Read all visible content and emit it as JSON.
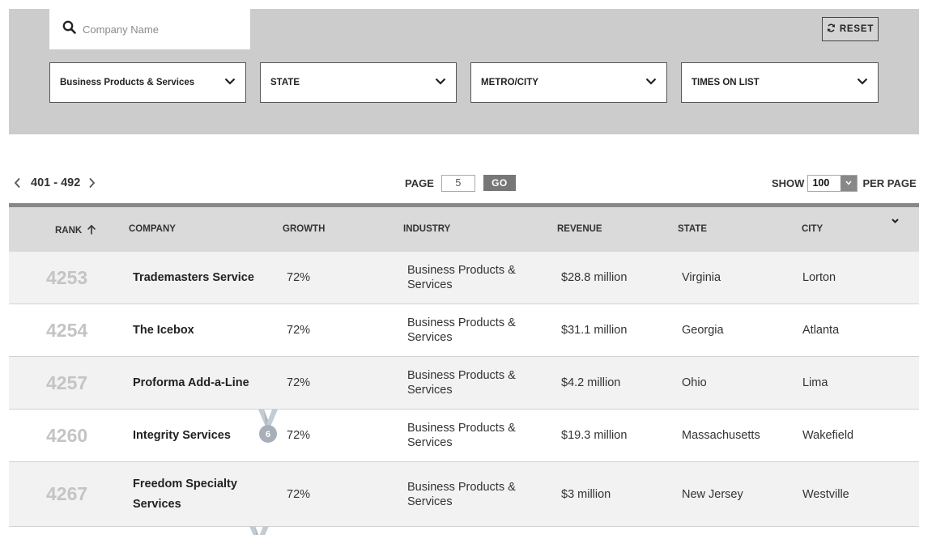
{
  "search": {
    "placeholder": "Company Name"
  },
  "reset_label": "RESET",
  "filters": [
    {
      "name": "industry",
      "label": "Business Products & Services"
    },
    {
      "name": "state",
      "label": "STATE"
    },
    {
      "name": "metro",
      "label": "METRO/CITY"
    },
    {
      "name": "times",
      "label": "TIMES ON LIST"
    }
  ],
  "pager": {
    "range": "401 - 492",
    "page_label": "PAGE",
    "page_value": "5",
    "go_label": "GO",
    "show_label": "SHOW",
    "per_page_value": "100",
    "per_page_label": "PER PAGE"
  },
  "columns": {
    "rank": "RANK",
    "company": "COMPANY",
    "growth": "GROWTH",
    "industry": "INDUSTRY",
    "revenue": "REVENUE",
    "state": "STATE",
    "city": "CITY"
  },
  "rows": [
    {
      "rank": "4253",
      "company": "Trademasters Service",
      "growth": "72%",
      "industry": "Business Products & Services",
      "revenue": "$28.8 million",
      "state": "Virginia",
      "city": "Lorton"
    },
    {
      "rank": "4254",
      "company": "The Icebox",
      "growth": "72%",
      "industry": "Business Products & Services",
      "revenue": "$31.1 million",
      "state": "Georgia",
      "city": "Atlanta"
    },
    {
      "rank": "4257",
      "company": "Proforma Add-a-Line",
      "growth": "72%",
      "industry": "Business Products & Services",
      "revenue": "$4.2 million",
      "state": "Ohio",
      "city": "Lima"
    },
    {
      "rank": "4260",
      "company": "Integrity Services",
      "growth": "72%",
      "industry": "Business Products & Services",
      "revenue": "$19.3 million",
      "state": "Massachusetts",
      "city": "Wakefield",
      "badge": "6"
    },
    {
      "rank": "4267",
      "company": "Freedom Specialty Services",
      "growth": "72%",
      "industry": "Business Products & Services",
      "revenue": "$3 million",
      "state": "New Jersey",
      "city": "Westville"
    }
  ],
  "colors": {
    "panel": "#cccccc",
    "header_bg": "#dadada",
    "rank_text": "#c4c4c4",
    "ribbon": "#b9c3cc",
    "badge": "#9aa4ad"
  }
}
